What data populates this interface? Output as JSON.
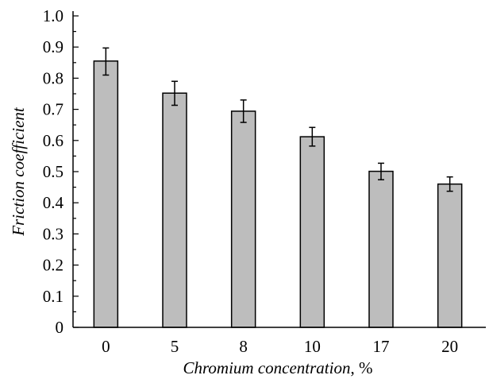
{
  "chart_data": {
    "type": "bar",
    "categories": [
      "0",
      "5",
      "8",
      "10",
      "17",
      "20"
    ],
    "values": [
      0.855,
      0.752,
      0.694,
      0.612,
      0.501,
      0.46
    ],
    "error_high": [
      0.897,
      0.79,
      0.73,
      0.642,
      0.527,
      0.483
    ],
    "error_low": [
      0.81,
      0.713,
      0.658,
      0.582,
      0.474,
      0.437
    ],
    "xlabel": "Chromium concentration",
    "xlabel_unit": "%",
    "ylabel": "Friction coefficient",
    "ylim": [
      0,
      1.0
    ],
    "yticks": [
      0,
      0.1,
      0.2,
      0.3,
      0.4,
      0.5,
      0.6,
      0.7,
      0.8,
      0.9,
      1.0
    ],
    "ytick_labels": [
      "0",
      "0.1",
      "0.2",
      "0.3",
      "0.4",
      "0.5",
      "0.6",
      "0.7",
      "0.8",
      "0.9",
      "1.0"
    ],
    "grid": false,
    "bar_color": "#bdbdbd",
    "edge_color": "#000000"
  }
}
